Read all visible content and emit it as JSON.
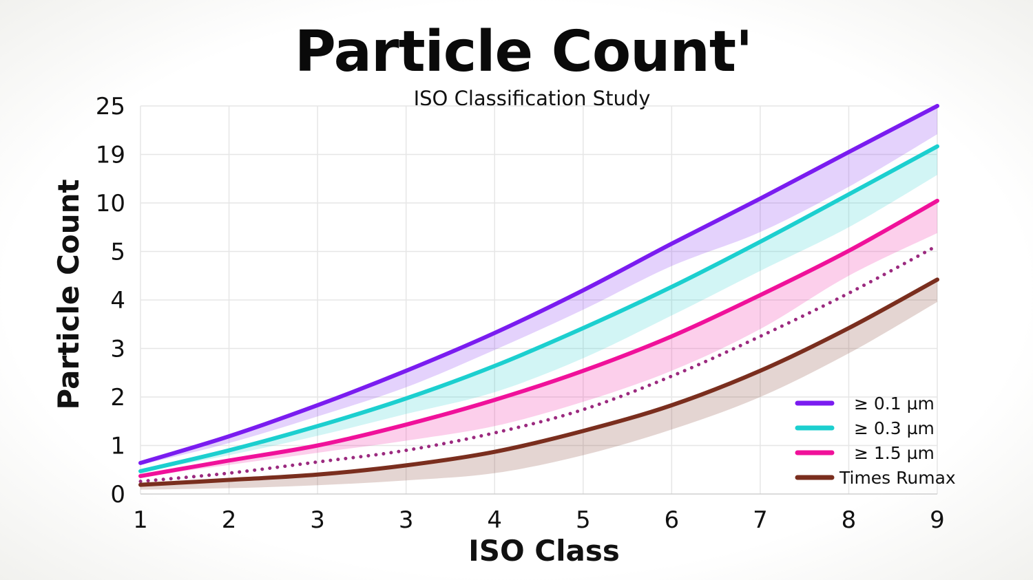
{
  "chart_data": {
    "type": "line",
    "title": "Particle Count'",
    "subtitle": "ISO Classification Study",
    "xlabel": "ISO Class",
    "ylabel": "Particle Count",
    "x_tick_labels": [
      "1",
      "2",
      "3",
      "3",
      "4",
      "5",
      "6",
      "7",
      "8",
      "9"
    ],
    "y_tick_labels": [
      "0",
      "1",
      "2",
      "3",
      "4",
      "5",
      "10",
      "19",
      "25"
    ],
    "y_tick_values": [
      0,
      1,
      2,
      3,
      4,
      5,
      10,
      19,
      25
    ],
    "ylim": [
      0,
      25
    ],
    "grid": true,
    "legend_position": "bottom-right",
    "series": [
      {
        "name": "≥ 0.1 µm",
        "color": "#7a1cf0",
        "style": "solid",
        "values": [
          0.64,
          1.19,
          1.83,
          2.54,
          3.32,
          4.2,
          5.8,
          10.8,
          19.3,
          25
        ],
        "band_lower": [
          0.6,
          1.05,
          1.6,
          2.2,
          2.97,
          3.8,
          4.7,
          7.0,
          13,
          21.5
        ]
      },
      {
        "name": "≥ 0.3 µm",
        "color": "#1ccfcf",
        "style": "solid",
        "values": [
          0.47,
          0.9,
          1.4,
          1.97,
          2.64,
          3.42,
          4.27,
          6.0,
          11.6,
          20.0
        ],
        "band_lower": [
          0.45,
          0.8,
          1.2,
          1.65,
          2.1,
          2.8,
          3.68,
          4.6,
          7.5,
          15.2
        ]
      },
      {
        "name": "≥ 1.5 µm",
        "color": "#f0119a",
        "style": "solid",
        "values": [
          0.37,
          0.69,
          1.0,
          1.43,
          1.94,
          2.54,
          3.25,
          4.1,
          5.07,
          10.4
        ],
        "band_lower": [
          0.35,
          0.6,
          0.85,
          1.1,
          1.4,
          1.9,
          2.54,
          3.4,
          4.5,
          6.9
        ]
      },
      {
        "color": "#9b2a7f",
        "style": "dotted",
        "values": [
          0.26,
          0.43,
          0.66,
          0.9,
          1.26,
          1.74,
          2.43,
          3.25,
          4.14,
          5.6
        ]
      },
      {
        "name": "Times Rumax",
        "color": "#7a2e1e",
        "style": "solid",
        "values": [
          0.19,
          0.29,
          0.4,
          0.59,
          0.87,
          1.3,
          1.83,
          2.54,
          3.42,
          4.42
        ],
        "band_lower": [
          0.09,
          0.12,
          0.18,
          0.28,
          0.43,
          0.8,
          1.33,
          2.0,
          2.9,
          3.96
        ]
      }
    ]
  }
}
